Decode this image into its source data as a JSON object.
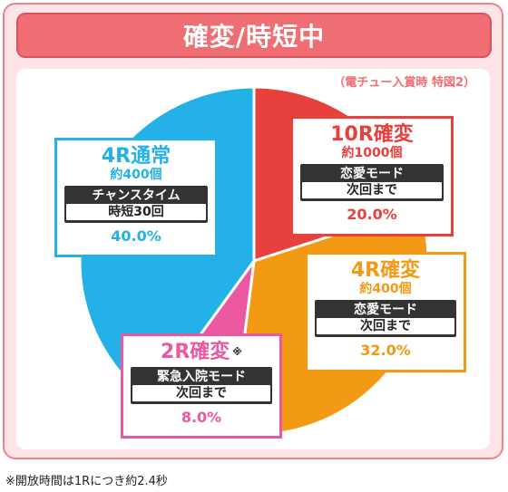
{
  "title": "確変/時短中",
  "subtitle": "（電チュー入賞時 特図2）",
  "footnote": "※開放時間は1Rにつき約2.4秒",
  "chart_data": {
    "type": "pie",
    "start_angle_deg": 0,
    "direction": "clockwise",
    "slices": [
      {
        "name": "10R確変",
        "count": "約1000個",
        "mode": "恋愛モード",
        "detail": "次回まで",
        "value": 20.0,
        "pct_label": "20.0%",
        "color": "#e8403d"
      },
      {
        "name": "4R確変",
        "count": "約400個",
        "mode": "恋愛モード",
        "detail": "次回まで",
        "value": 32.0,
        "pct_label": "32.0%",
        "color": "#f39a15"
      },
      {
        "name": "2R確変",
        "mark": "※",
        "count": "",
        "mode": "緊急入院モード",
        "detail": "次回まで",
        "value": 8.0,
        "pct_label": "8.0%",
        "color": "#ea58a2"
      },
      {
        "name": "4R通常",
        "count": "約400個",
        "mode": "チャンスタイム",
        "detail": "時短30回",
        "value": 40.0,
        "pct_label": "40.0%",
        "color": "#23b1e8"
      }
    ]
  }
}
